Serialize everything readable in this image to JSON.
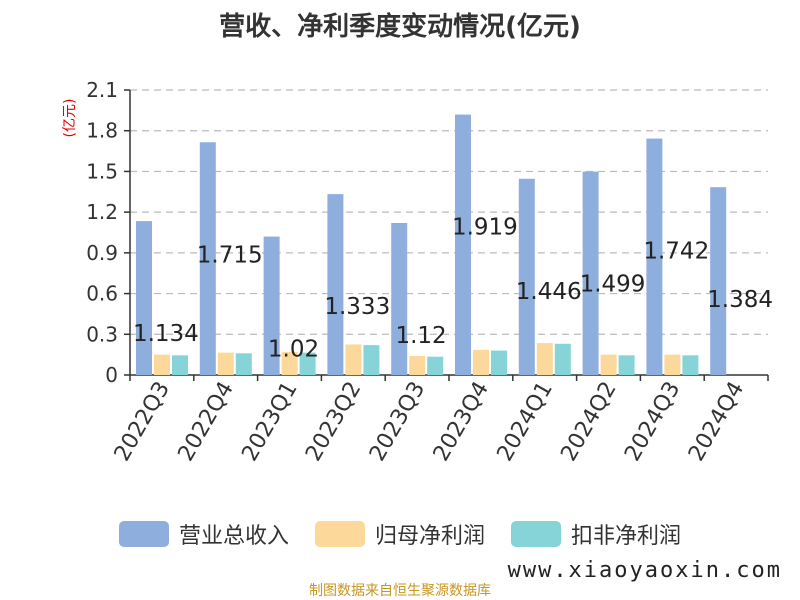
{
  "chart_data": {
    "type": "bar",
    "title": "营收、净利季度变动情况(亿元)",
    "ylabel": "(亿元)",
    "ylim": [
      0,
      2.1
    ],
    "yticks": [
      0,
      0.3,
      0.6,
      0.9,
      1.2,
      1.5,
      1.8,
      2.1
    ],
    "ytick_labels": [
      "0",
      "0.3",
      "0.6",
      "0.9",
      "1.2",
      "1.5",
      "1.8",
      "2.1"
    ],
    "grid": true,
    "legend_position": "bottom",
    "categories": [
      "2022Q3",
      "2022Q4",
      "2023Q1",
      "2023Q2",
      "2023Q3",
      "2023Q4",
      "2024Q1",
      "2024Q2",
      "2024Q3",
      "2024Q4"
    ],
    "series": [
      {
        "name": "营业总收入",
        "color": "#8eaedd",
        "values": [
          1.134,
          1.715,
          1.02,
          1.333,
          1.12,
          1.919,
          1.446,
          1.499,
          1.742,
          1.384
        ],
        "labels": [
          "1.134",
          "1.715",
          "1.02",
          "1.333",
          "1.12",
          "1.919",
          "1.446",
          "1.499",
          "1.742",
          "1.384"
        ]
      },
      {
        "name": "归母净利润",
        "color": "#fcd89a",
        "values": [
          0.15,
          0.165,
          0.17,
          0.225,
          0.14,
          0.185,
          0.235,
          0.15,
          0.15,
          null
        ]
      },
      {
        "name": "扣非净利润",
        "color": "#86d4d8",
        "values": [
          0.145,
          0.16,
          0.165,
          0.22,
          0.135,
          0.18,
          0.23,
          0.145,
          0.145,
          null
        ]
      }
    ]
  },
  "footer": {
    "source": "制图数据来自恒生聚源数据库",
    "watermark": "www.xiaoyaoxin.com"
  }
}
